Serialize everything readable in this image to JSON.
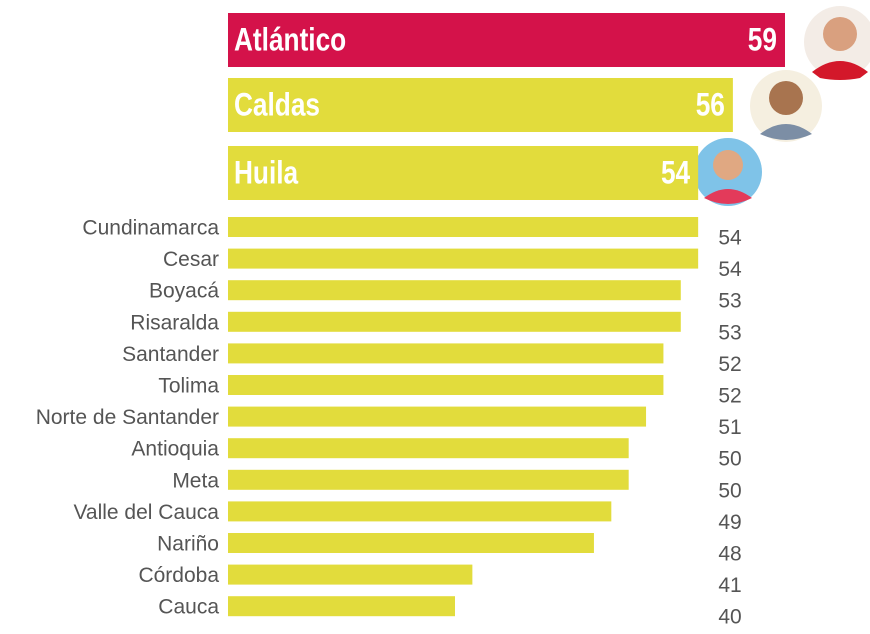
{
  "chart_data": {
    "type": "bar",
    "orientation": "horizontal",
    "featured": 3,
    "categories": [
      "Atlántico",
      "Caldas",
      "Huila",
      "Cundinamarca",
      "Cesar",
      "Boyacá",
      "Risaralda",
      "Santander",
      "Tolima",
      "Norte de Santander",
      "Antioquia",
      "Meta",
      "Valle del Cauca",
      "Nariño",
      "Córdoba",
      "Cauca"
    ],
    "values": [
      59,
      56,
      54,
      54,
      54,
      53,
      53,
      52,
      52,
      51,
      50,
      50,
      49,
      48,
      41,
      40
    ],
    "colors": [
      "#d4124a",
      "#e2dc3c",
      "#e2dc3c",
      "#e2dc3c",
      "#e2dc3c",
      "#e2dc3c",
      "#e2dc3c",
      "#e2dc3c",
      "#e2dc3c",
      "#e2dc3c",
      "#e2dc3c",
      "#e2dc3c",
      "#e2dc3c",
      "#e2dc3c",
      "#e2dc3c",
      "#e2dc3c"
    ]
  }
}
